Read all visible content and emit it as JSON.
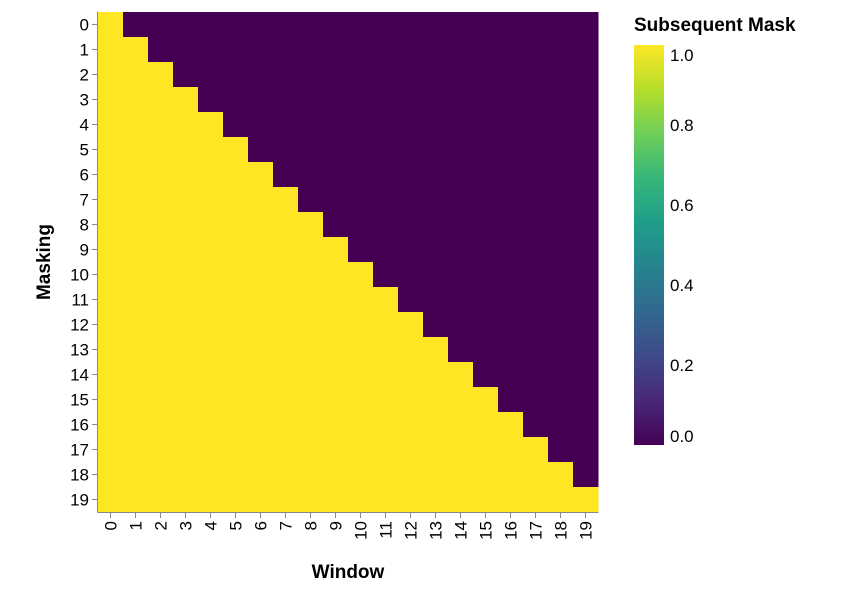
{
  "chart_data": {
    "type": "heatmap",
    "title": "",
    "xlabel": "Window",
    "ylabel": "Masking",
    "x_categories": [
      "0",
      "1",
      "2",
      "3",
      "4",
      "5",
      "6",
      "7",
      "8",
      "9",
      "10",
      "11",
      "12",
      "13",
      "14",
      "15",
      "16",
      "17",
      "18",
      "19"
    ],
    "y_categories": [
      "0",
      "1",
      "2",
      "3",
      "4",
      "5",
      "6",
      "7",
      "8",
      "9",
      "10",
      "11",
      "12",
      "13",
      "14",
      "15",
      "16",
      "17",
      "18",
      "19"
    ],
    "values": [
      [
        1,
        0,
        0,
        0,
        0,
        0,
        0,
        0,
        0,
        0,
        0,
        0,
        0,
        0,
        0,
        0,
        0,
        0,
        0,
        0
      ],
      [
        1,
        1,
        0,
        0,
        0,
        0,
        0,
        0,
        0,
        0,
        0,
        0,
        0,
        0,
        0,
        0,
        0,
        0,
        0,
        0
      ],
      [
        1,
        1,
        1,
        0,
        0,
        0,
        0,
        0,
        0,
        0,
        0,
        0,
        0,
        0,
        0,
        0,
        0,
        0,
        0,
        0
      ],
      [
        1,
        1,
        1,
        1,
        0,
        0,
        0,
        0,
        0,
        0,
        0,
        0,
        0,
        0,
        0,
        0,
        0,
        0,
        0,
        0
      ],
      [
        1,
        1,
        1,
        1,
        1,
        0,
        0,
        0,
        0,
        0,
        0,
        0,
        0,
        0,
        0,
        0,
        0,
        0,
        0,
        0
      ],
      [
        1,
        1,
        1,
        1,
        1,
        1,
        0,
        0,
        0,
        0,
        0,
        0,
        0,
        0,
        0,
        0,
        0,
        0,
        0,
        0
      ],
      [
        1,
        1,
        1,
        1,
        1,
        1,
        1,
        0,
        0,
        0,
        0,
        0,
        0,
        0,
        0,
        0,
        0,
        0,
        0,
        0
      ],
      [
        1,
        1,
        1,
        1,
        1,
        1,
        1,
        1,
        0,
        0,
        0,
        0,
        0,
        0,
        0,
        0,
        0,
        0,
        0,
        0
      ],
      [
        1,
        1,
        1,
        1,
        1,
        1,
        1,
        1,
        1,
        0,
        0,
        0,
        0,
        0,
        0,
        0,
        0,
        0,
        0,
        0
      ],
      [
        1,
        1,
        1,
        1,
        1,
        1,
        1,
        1,
        1,
        1,
        0,
        0,
        0,
        0,
        0,
        0,
        0,
        0,
        0,
        0
      ],
      [
        1,
        1,
        1,
        1,
        1,
        1,
        1,
        1,
        1,
        1,
        1,
        0,
        0,
        0,
        0,
        0,
        0,
        0,
        0,
        0
      ],
      [
        1,
        1,
        1,
        1,
        1,
        1,
        1,
        1,
        1,
        1,
        1,
        1,
        0,
        0,
        0,
        0,
        0,
        0,
        0,
        0
      ],
      [
        1,
        1,
        1,
        1,
        1,
        1,
        1,
        1,
        1,
        1,
        1,
        1,
        1,
        0,
        0,
        0,
        0,
        0,
        0,
        0
      ],
      [
        1,
        1,
        1,
        1,
        1,
        1,
        1,
        1,
        1,
        1,
        1,
        1,
        1,
        1,
        0,
        0,
        0,
        0,
        0,
        0
      ],
      [
        1,
        1,
        1,
        1,
        1,
        1,
        1,
        1,
        1,
        1,
        1,
        1,
        1,
        1,
        1,
        0,
        0,
        0,
        0,
        0
      ],
      [
        1,
        1,
        1,
        1,
        1,
        1,
        1,
        1,
        1,
        1,
        1,
        1,
        1,
        1,
        1,
        1,
        0,
        0,
        0,
        0
      ],
      [
        1,
        1,
        1,
        1,
        1,
        1,
        1,
        1,
        1,
        1,
        1,
        1,
        1,
        1,
        1,
        1,
        1,
        0,
        0,
        0
      ],
      [
        1,
        1,
        1,
        1,
        1,
        1,
        1,
        1,
        1,
        1,
        1,
        1,
        1,
        1,
        1,
        1,
        1,
        1,
        0,
        0
      ],
      [
        1,
        1,
        1,
        1,
        1,
        1,
        1,
        1,
        1,
        1,
        1,
        1,
        1,
        1,
        1,
        1,
        1,
        1,
        1,
        0
      ],
      [
        1,
        1,
        1,
        1,
        1,
        1,
        1,
        1,
        1,
        1,
        1,
        1,
        1,
        1,
        1,
        1,
        1,
        1,
        1,
        1
      ]
    ],
    "color_scale": {
      "title": "Subsequent Mask",
      "scheme": "viridis",
      "domain": [
        0,
        1
      ],
      "low_color": "#440154",
      "high_color": "#fde725",
      "ticks": [
        "0.0",
        "0.2",
        "0.4",
        "0.6",
        "0.8",
        "1.0"
      ],
      "tick_values": [
        0,
        0.2,
        0.4,
        0.6,
        0.8,
        1.0
      ],
      "placement": "right"
    },
    "grid": false
  }
}
